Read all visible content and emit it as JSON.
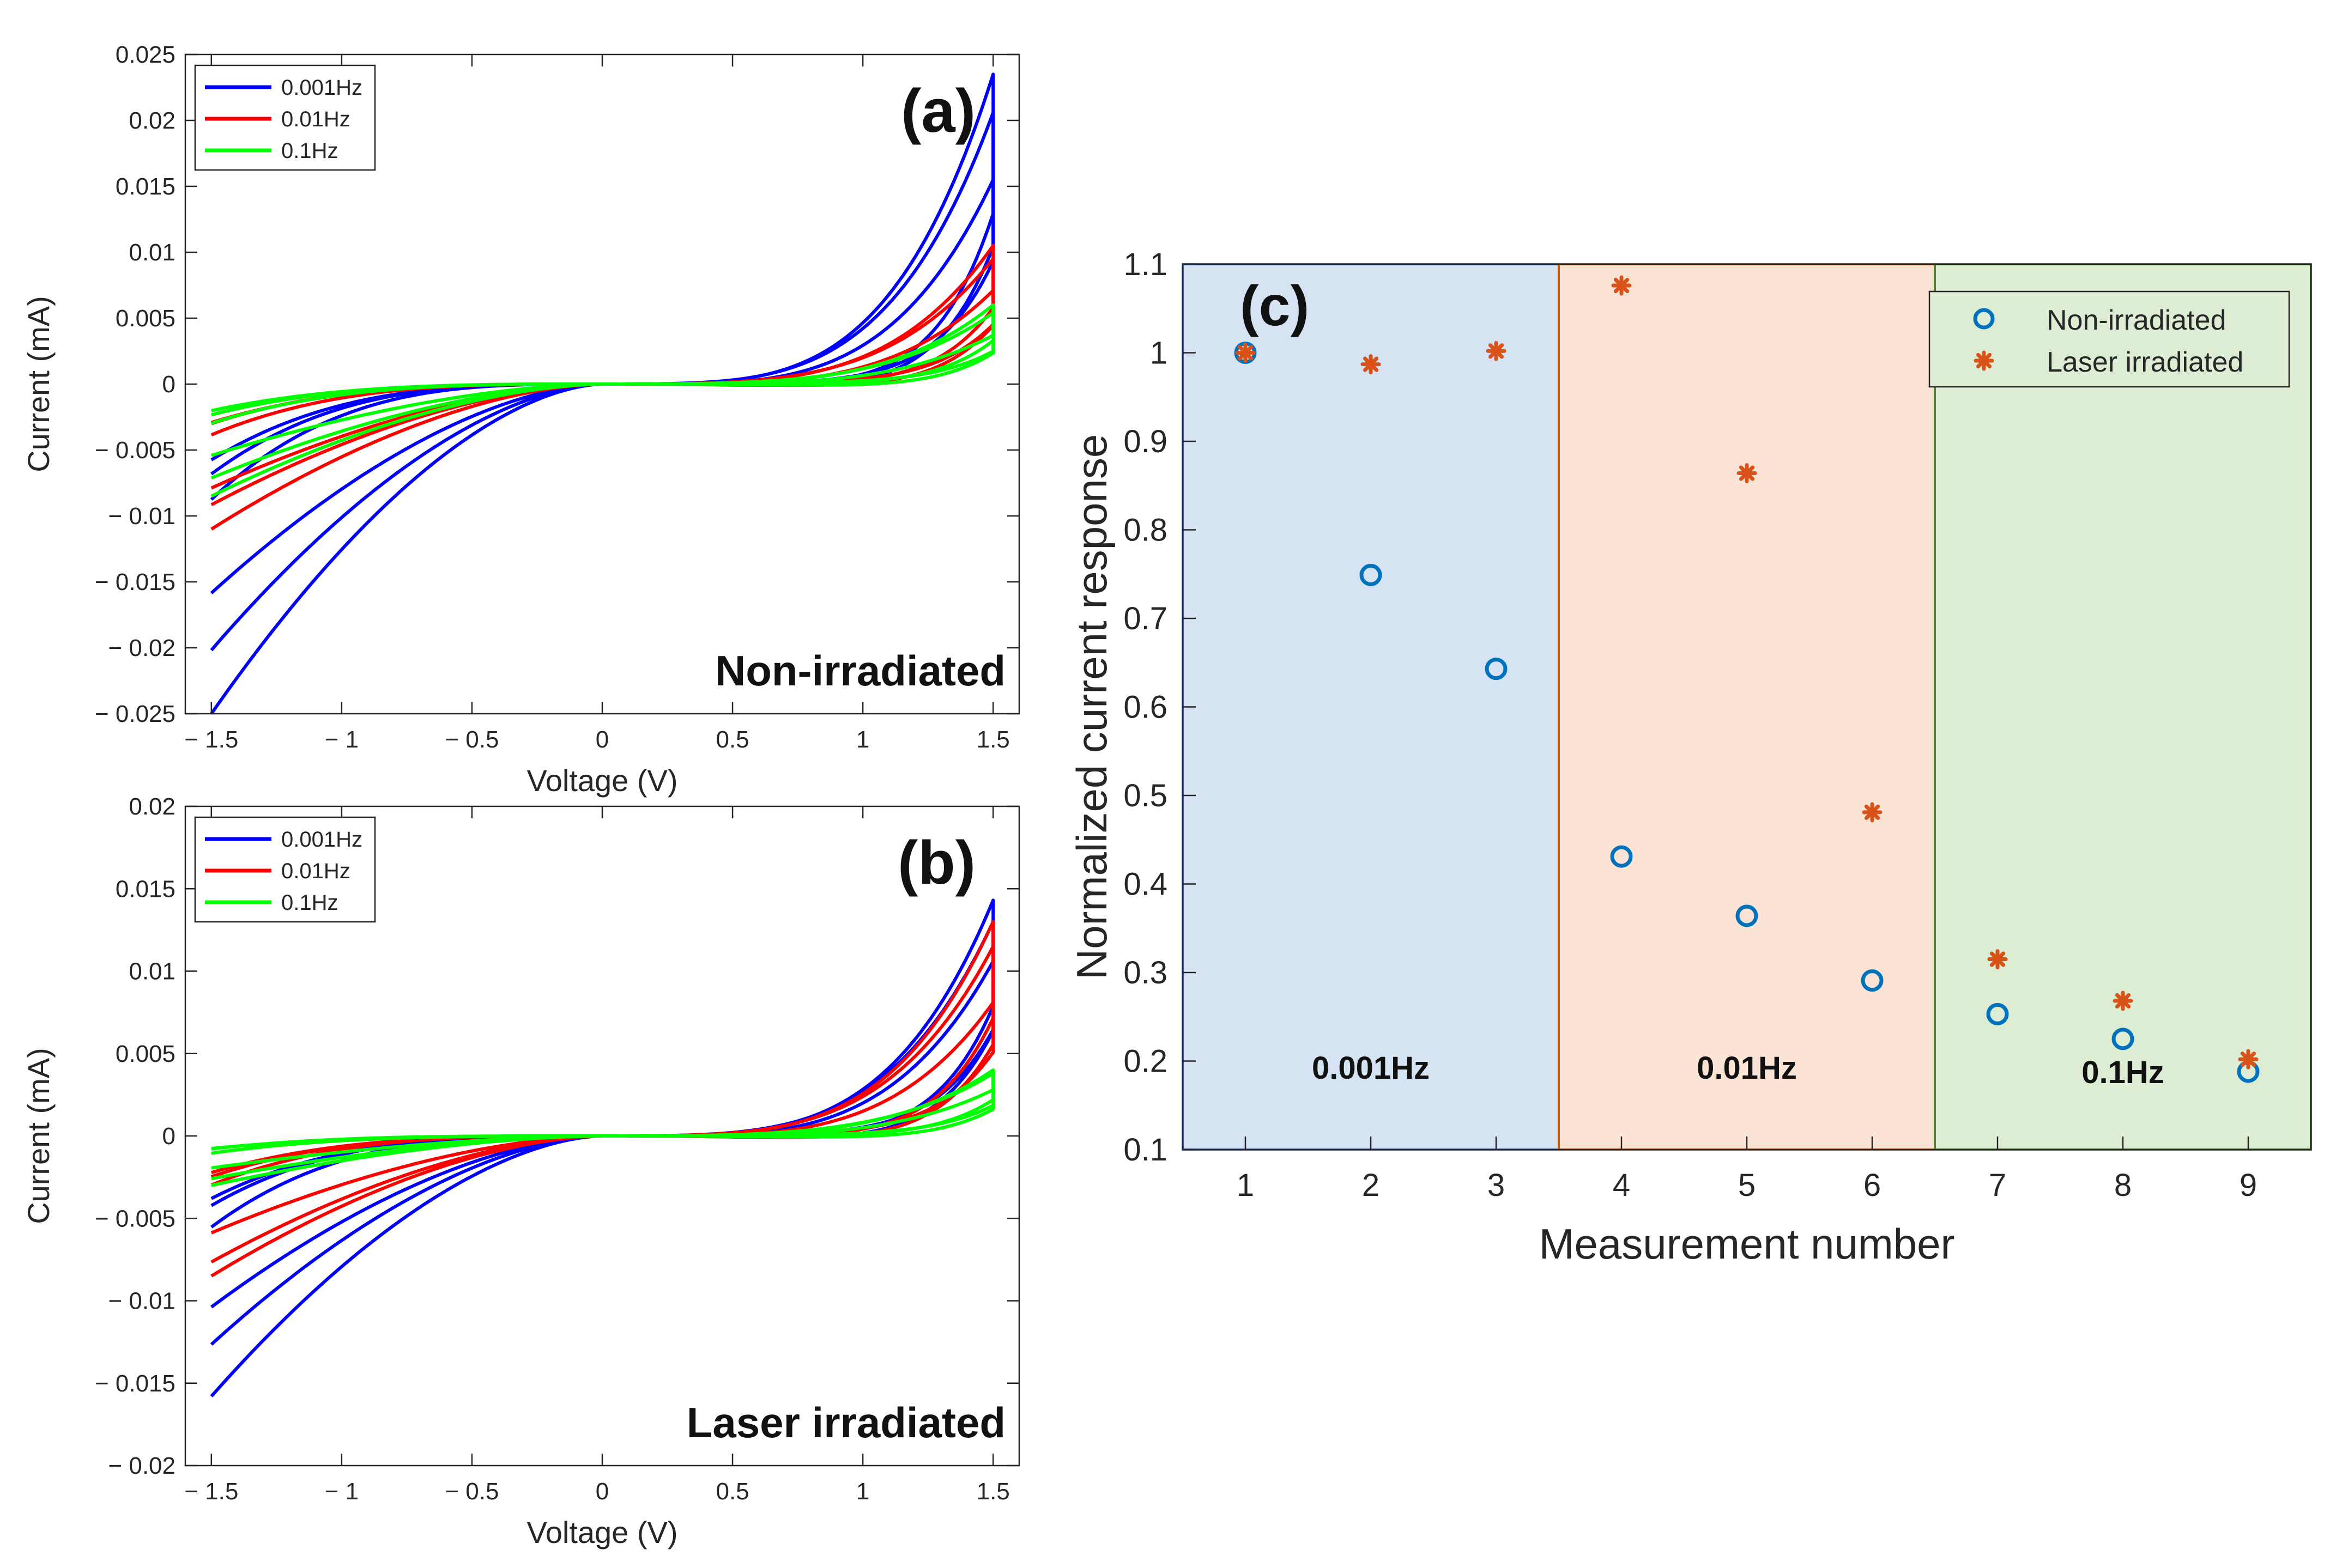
{
  "chart_data": [
    {
      "id": "a",
      "type": "line",
      "panel_label": "(a)",
      "annotation": "Non-irradiated",
      "xlabel": "Voltage (V)",
      "ylabel": "Current (mA)",
      "xlim": [
        -1.6,
        1.6
      ],
      "ylim": [
        -0.025,
        0.025
      ],
      "xticks": [
        -1.5,
        -1,
        -0.5,
        0,
        0.5,
        1,
        1.5
      ],
      "xtick_labels": [
        "− 1.5",
        "− 1",
        "− 0.5",
        "0",
        "0.5",
        "1",
        "1.5"
      ],
      "yticks": [
        -0.025,
        -0.02,
        -0.015,
        -0.01,
        -0.005,
        0,
        0.005,
        0.01,
        0.015,
        0.02,
        0.025
      ],
      "ytick_labels": [
        "− 0.025",
        "− 0.02",
        "− 0.015",
        "− 0.01",
        "− 0.005",
        "0",
        "0.005",
        "0.01",
        "0.015",
        "0.02",
        "0.025"
      ],
      "legend": {
        "placement": "top-left",
        "entries": [
          "0.001Hz",
          "0.01Hz",
          "0.1Hz"
        ]
      },
      "series": [
        {
          "name": "0.001Hz",
          "color": "#0000ff",
          "loops": [
            {
              "pos_max": 0.0235,
              "neg_min": -0.025,
              "off": 0
            },
            {
              "pos_max": 0.02,
              "neg_min": -0.02,
              "off": 0.0006
            },
            {
              "pos_max": 0.016,
              "neg_min": -0.016,
              "off": -0.0005
            }
          ]
        },
        {
          "name": "0.01Hz",
          "color": "#ff0000",
          "loops": [
            {
              "pos_max": 0.0105,
              "neg_min": -0.011,
              "off": 0
            },
            {
              "pos_max": 0.009,
              "neg_min": -0.009,
              "off": 0.0005
            },
            {
              "pos_max": 0.0075,
              "neg_min": -0.008,
              "off": -0.0004
            }
          ]
        },
        {
          "name": "0.1Hz",
          "color": "#00ff00",
          "loops": [
            {
              "pos_max": 0.006,
              "neg_min": -0.0085,
              "off": 0
            },
            {
              "pos_max": 0.005,
              "neg_min": -0.007,
              "off": 0.0004
            },
            {
              "pos_max": 0.004,
              "neg_min": -0.0055,
              "off": -0.0003
            }
          ]
        }
      ]
    },
    {
      "id": "b",
      "type": "line",
      "panel_label": "(b)",
      "annotation": "Laser irradiated",
      "xlabel": "Voltage (V)",
      "ylabel": "Current (mA)",
      "xlim": [
        -1.6,
        1.6
      ],
      "ylim": [
        -0.02,
        0.02
      ],
      "xticks": [
        -1.5,
        -1,
        -0.5,
        0,
        0.5,
        1,
        1.5
      ],
      "xtick_labels": [
        "− 1.5",
        "− 1",
        "− 0.5",
        "0",
        "0.5",
        "1",
        "1.5"
      ],
      "yticks": [
        -0.02,
        -0.015,
        -0.01,
        -0.005,
        0,
        0.005,
        0.01,
        0.015,
        0.02
      ],
      "ytick_labels": [
        "− 0.02",
        "− 0.015",
        "− 0.01",
        "− 0.005",
        "0",
        "0.005",
        "0.01",
        "0.015",
        "0.02"
      ],
      "legend": {
        "placement": "top-left",
        "entries": [
          "0.001Hz",
          "0.01Hz",
          "0.1Hz"
        ]
      },
      "series": [
        {
          "name": "0.001Hz",
          "color": "#0000ff",
          "loops": [
            {
              "pos_max": 0.0143,
              "neg_min": -0.0158,
              "off": 0
            },
            {
              "pos_max": 0.0125,
              "neg_min": -0.0125,
              "off": 0.0005
            },
            {
              "pos_max": 0.011,
              "neg_min": -0.0105,
              "off": -0.0004
            }
          ]
        },
        {
          "name": "0.01Hz",
          "color": "#ff0000",
          "loops": [
            {
              "pos_max": 0.013,
              "neg_min": -0.0085,
              "off": 0
            },
            {
              "pos_max": 0.011,
              "neg_min": -0.0075,
              "off": 0.0005
            },
            {
              "pos_max": 0.0085,
              "neg_min": -0.006,
              "off": -0.0004
            }
          ]
        },
        {
          "name": "0.1Hz",
          "color": "#00ff00",
          "loops": [
            {
              "pos_max": 0.004,
              "neg_min": -0.003,
              "off": 0
            },
            {
              "pos_max": 0.0035,
              "neg_min": -0.0025,
              "off": 0.0003
            },
            {
              "pos_max": 0.003,
              "neg_min": -0.002,
              "off": -0.0002
            }
          ]
        }
      ]
    },
    {
      "id": "c",
      "type": "scatter",
      "panel_label": "(c)",
      "xlabel": "Measurement number",
      "ylabel": "Normalized current response",
      "xlim": [
        0.5,
        9.5
      ],
      "ylim": [
        0.1,
        1.1
      ],
      "xticks": [
        1,
        2,
        3,
        4,
        5,
        6,
        7,
        8,
        9
      ],
      "xtick_labels": [
        "1",
        "2",
        "3",
        "4",
        "5",
        "6",
        "7",
        "8",
        "9"
      ],
      "yticks": [
        0.1,
        0.2,
        0.3,
        0.4,
        0.5,
        0.6,
        0.7,
        0.8,
        0.9,
        1,
        1.1
      ],
      "ytick_labels": [
        "0.1",
        "0.2",
        "0.3",
        "0.4",
        "0.5",
        "0.6",
        "0.7",
        "0.8",
        "0.9",
        "1",
        "1.1"
      ],
      "legend": {
        "placement": "top-right",
        "entries": [
          "Non-irradiated",
          "Laser irradiated"
        ]
      },
      "regions": [
        {
          "label": "0.001Hz",
          "from": 0.5,
          "to": 3.5,
          "fill": "#d6e3f3",
          "stroke": "#4472c4"
        },
        {
          "label": "0.01Hz",
          "from": 3.5,
          "to": 6.5,
          "fill": "#fbe3d5",
          "stroke": "#c55a11"
        },
        {
          "label": "0.1Hz",
          "from": 6.5,
          "to": 9.5,
          "fill": "#dcedd3",
          "stroke": "#548235"
        }
      ],
      "x": [
        1,
        2,
        3,
        4,
        5,
        6,
        7,
        8,
        9
      ],
      "series": [
        {
          "name": "Non-irradiated",
          "marker": "circle",
          "color": "#0072bd",
          "values": [
            1.0,
            0.749,
            0.643,
            0.431,
            0.364,
            0.291,
            0.253,
            0.225,
            0.188
          ]
        },
        {
          "name": "Laser irradiated",
          "marker": "asterisk",
          "color": "#d95319",
          "values": [
            1.0,
            0.987,
            1.002,
            1.076,
            0.864,
            0.481,
            0.315,
            0.268,
            0.202
          ]
        }
      ]
    }
  ]
}
